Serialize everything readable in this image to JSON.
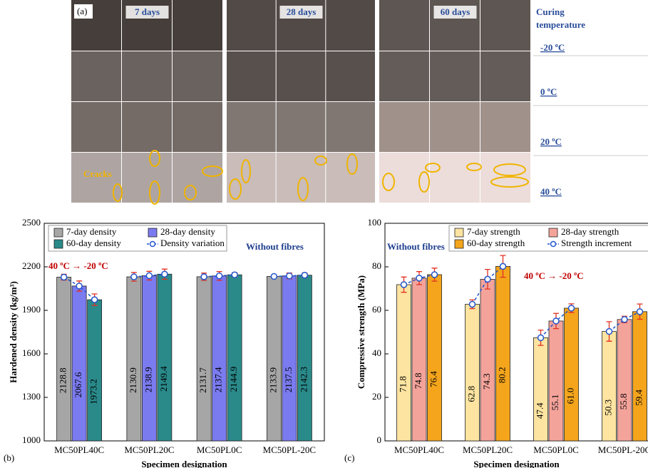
{
  "photo_panel": {
    "label": "(a)",
    "ages": [
      "7 days",
      "28 days",
      "60 days"
    ],
    "legend_title": "Curing temperature",
    "temperatures": [
      "-20 ºC",
      "0 ºC",
      "20 ºC",
      "40 ºC"
    ],
    "annotation": "Cracks"
  },
  "chart_data": [
    {
      "type": "bar",
      "panel_label": "(b)",
      "x_label": "Specimen designation",
      "y_label": "Hardened density (kg/m³)",
      "categories": [
        "MC50PL40C",
        "MC50PL20C",
        "MC50PL0C",
        "MC50PL-20C"
      ],
      "series": [
        {
          "name": "7-day density",
          "color": "#a6a6a6",
          "values": [
            2128.8,
            2130.9,
            2131.7,
            2133.9
          ],
          "errors": [
            20,
            30,
            25,
            8
          ]
        },
        {
          "name": "28-day density",
          "color": "#7b7bf0",
          "values": [
            2067.6,
            2138.9,
            2137.4,
            2137.5
          ],
          "errors": [
            35,
            30,
            30,
            20
          ]
        },
        {
          "name": "60-day density",
          "color": "#2a8a8a",
          "values": [
            1973.2,
            2149.4,
            2144.9,
            2142.3
          ],
          "errors": [
            40,
            35,
            15,
            15
          ]
        }
      ],
      "line_legend": "Density variation",
      "line_color": "#2255cc",
      "ylim": [
        1000,
        2500
      ],
      "yticks": [
        1000,
        1300,
        1600,
        1900,
        2200,
        2500
      ],
      "annotations": [
        "40 ºC → -20 ºC",
        "Without fibres"
      ],
      "legend": "upper left"
    },
    {
      "type": "bar",
      "panel_label": "(c)",
      "x_label": "Specimen designation",
      "y_label": "Compressive strength (MPa)",
      "categories": [
        "MC50PL40C",
        "MC50PL20C",
        "MC50PL0C",
        "MC50PL-20C"
      ],
      "series": [
        {
          "name": "7-day strength",
          "color": "#fde4a0",
          "values": [
            71.8,
            62.8,
            47.4,
            50.3
          ],
          "errors": [
            3.5,
            2,
            3.5,
            4.5
          ]
        },
        {
          "name": "28-day strength",
          "color": "#f4a39b",
          "values": [
            74.8,
            74.3,
            55.1,
            55.8
          ],
          "errors": [
            3,
            4.5,
            3.5,
            1.5
          ]
        },
        {
          "name": "60-day strength",
          "color": "#f4a51c",
          "values": [
            76.4,
            80.2,
            61.0,
            59.4
          ],
          "value_labels": [
            "76.4",
            "80.2",
            "61.0",
            "59.4"
          ],
          "errors": [
            3,
            5,
            2,
            3.5
          ]
        }
      ],
      "line_legend": "Strength increment",
      "line_color": "#2255cc",
      "ylim": [
        0,
        100
      ],
      "yticks": [
        0,
        20,
        40,
        60,
        80,
        100
      ],
      "annotations": [
        "Without fibres",
        "40 ºC → -20 ºC"
      ],
      "legend": "upper right"
    }
  ]
}
